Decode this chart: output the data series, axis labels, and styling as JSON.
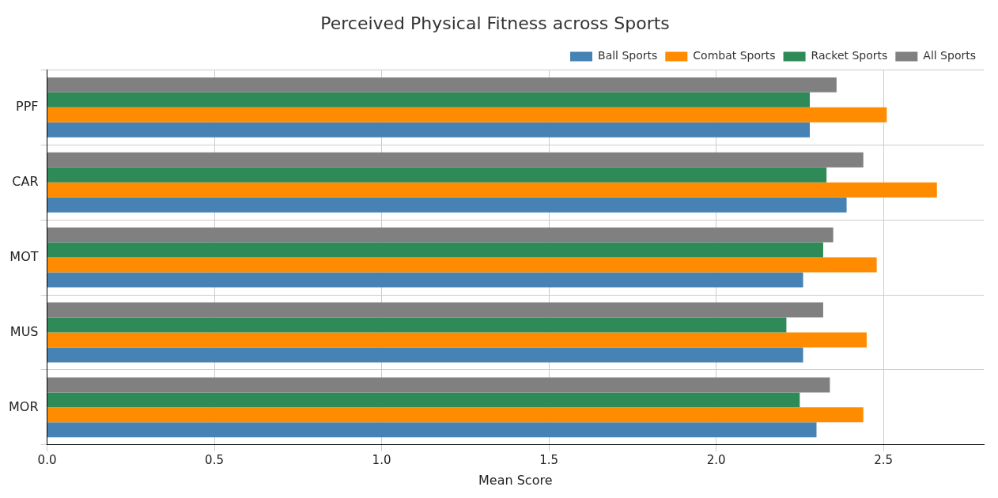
{
  "chart_data": {
    "type": "bar",
    "orientation": "horizontal",
    "title": "Perceived Physical Fitness across Sports",
    "xlabel": "Mean Score",
    "categories": [
      "PPF",
      "CAR",
      "MOT",
      "MUS",
      "MOR"
    ],
    "series": [
      {
        "name": "Ball Sports",
        "color": "#4682b4",
        "values": [
          2.28,
          2.39,
          2.26,
          2.26,
          2.3
        ]
      },
      {
        "name": "Combat Sports",
        "color": "#ff8c00",
        "values": [
          2.51,
          2.66,
          2.48,
          2.45,
          2.44
        ]
      },
      {
        "name": "Racket Sports",
        "color": "#2e8b57",
        "values": [
          2.28,
          2.33,
          2.32,
          2.21,
          2.25
        ]
      },
      {
        "name": "All Sports",
        "color": "#808080",
        "values": [
          2.36,
          2.44,
          2.35,
          2.32,
          2.34
        ]
      }
    ],
    "xlim": [
      0,
      2.8
    ],
    "xticks": [
      {
        "value": 0,
        "label": "0.0"
      },
      {
        "value": 0.5,
        "label": "0.5"
      },
      {
        "value": 1,
        "label": "1.0"
      },
      {
        "value": 1.5,
        "label": "1.5"
      },
      {
        "value": 2,
        "label": "2.0"
      },
      {
        "value": 2.5,
        "label": "2.5"
      }
    ],
    "grid": true,
    "legend": "top right"
  }
}
